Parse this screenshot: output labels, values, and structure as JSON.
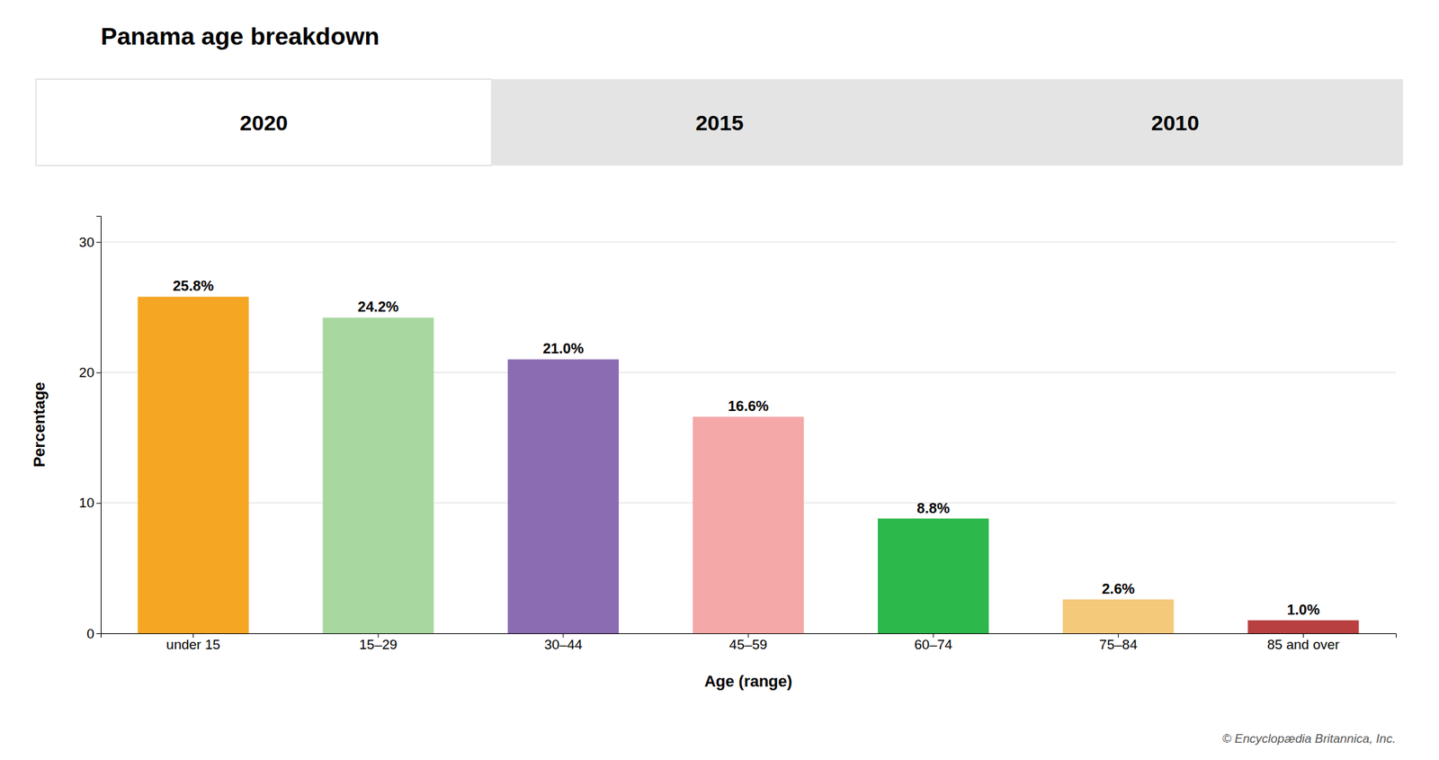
{
  "chart_data": {
    "type": "bar",
    "title": "Panama age breakdown",
    "categories": [
      "under 15",
      "15–29",
      "30–44",
      "45–59",
      "60–74",
      "75–84",
      "85 and over"
    ],
    "values": [
      25.8,
      24.2,
      21.0,
      16.6,
      8.8,
      2.6,
      1.0
    ],
    "value_labels": [
      "25.8%",
      "24.2%",
      "21.0%",
      "16.6%",
      "8.8%",
      "2.6%",
      "1.0%"
    ],
    "data_labels": true,
    "colors": [
      "#F5A623",
      "#A8D8A0",
      "#8B6BB1",
      "#F4A8A8",
      "#2DB84B",
      "#F5C97A",
      "#B94040"
    ],
    "x_label": "Age (range)",
    "y_label": "Percentage",
    "ylim": [
      0,
      32
    ],
    "yticks": [
      0,
      10,
      20,
      30
    ],
    "grid": true,
    "annotations": [
      "2020",
      "2015",
      "2010",
      "© Encyclopædia Britannica, Inc."
    ]
  }
}
